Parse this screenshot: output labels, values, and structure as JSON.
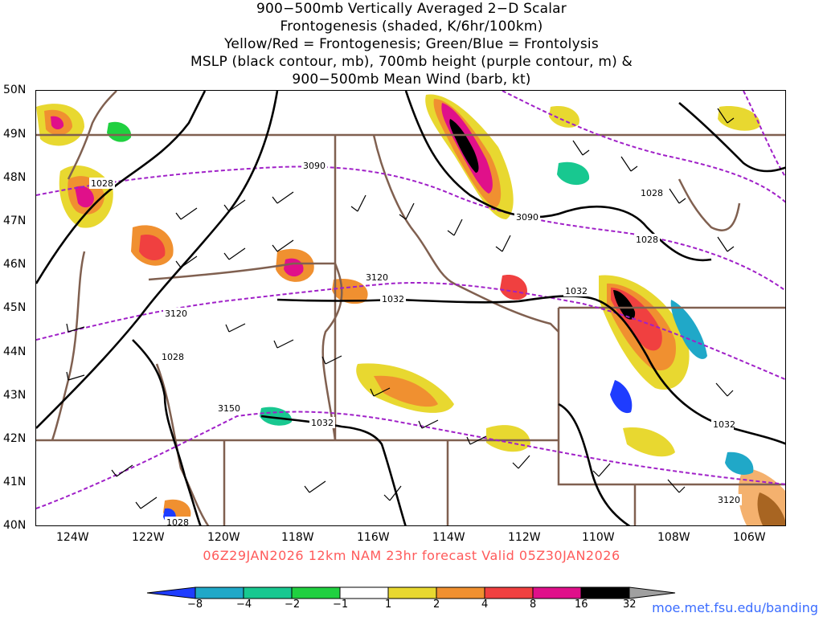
{
  "title_lines": [
    "900−500mb Vertically Averaged 2−D Scalar",
    "Frontogenesis (shaded, K/6hr/100km)",
    "Yellow/Red = Frontogenesis;  Green/Blue = Frontolysis",
    "MSLP (black contour, mb), 700mb height (purple contour, m) &",
    "900−500mb Mean Wind (barb, kt)"
  ],
  "lat_labels": [
    "50N",
    "49N",
    "48N",
    "47N",
    "46N",
    "45N",
    "44N",
    "43N",
    "42N",
    "41N",
    "40N"
  ],
  "lon_labels": [
    "124W",
    "122W",
    "120W",
    "118W",
    "116W",
    "114W",
    "112W",
    "110W",
    "108W",
    "106W"
  ],
  "contour_labels": {
    "height": [
      "3090",
      "3090",
      "3120",
      "3120",
      "3150",
      "3120"
    ],
    "mslp": [
      "1028",
      "1028",
      "1028",
      "1032",
      "1032",
      "1032",
      "1032",
      "1028",
      "1028"
    ]
  },
  "forecast_text": "06Z29JAN2026 12km NAM 23hr forecast Valid 05Z30JAN2026",
  "colorbar": {
    "labels": [
      "−8",
      "−4",
      "−2",
      "−1",
      "1",
      "2",
      "4",
      "8",
      "16",
      "32"
    ],
    "colors": [
      "#1e3cff",
      "#20a8c8",
      "#18c890",
      "#20d040",
      "#ffffff",
      "#e8d830",
      "#f09030",
      "#f04040",
      "#e0108a",
      "#000000",
      "#a0a0a0"
    ]
  },
  "credit": "moe.met.fsu.edu/banding",
  "colors": {
    "mslp": "#000000",
    "height": "#a020c8",
    "borders": "#806050",
    "forecast": "#ff5a5a"
  }
}
